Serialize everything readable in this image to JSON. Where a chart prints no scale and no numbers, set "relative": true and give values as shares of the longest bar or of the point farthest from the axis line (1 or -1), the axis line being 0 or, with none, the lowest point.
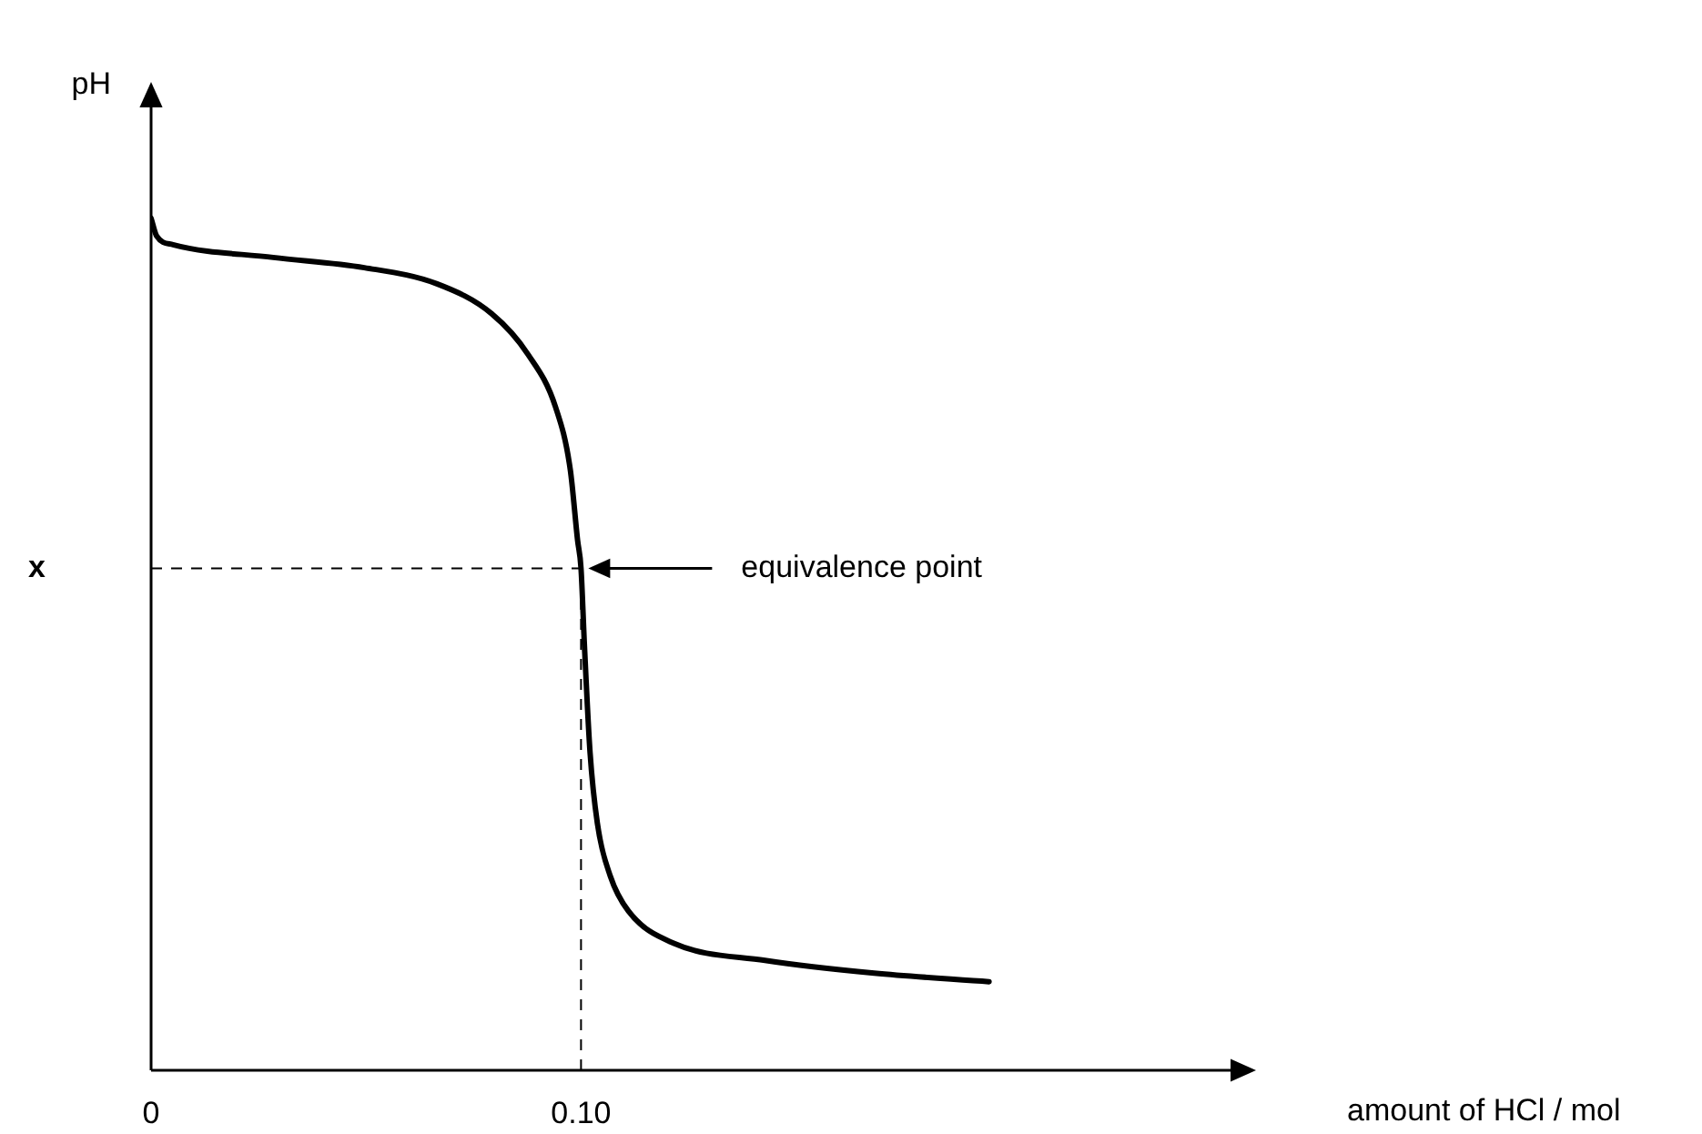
{
  "chart_data": {
    "type": "line",
    "relative": true,
    "xlabel": "amount of HCl / mol",
    "ylabel": "pH",
    "x": [
      0,
      0.0013,
      0.0051,
      0.0284,
      0.0496,
      0.0665,
      0.0792,
      0.0877,
      0.0941,
      0.0975,
      0.0992,
      0.1,
      0.1008,
      0.1021,
      0.1038,
      0.1068,
      0.111,
      0.1216,
      0.1428,
      0.1682,
      0.1949
    ],
    "series": [
      {
        "color": "#000000",
        "values": [
          1,
          0.979,
          0.969,
          0.954,
          0.942,
          0.923,
          0.888,
          0.84,
          0.778,
          0.705,
          0.622,
          0.589,
          0.498,
          0.373,
          0.29,
          0.228,
          0.187,
          0.149,
          0.129,
          0.114,
          0.104
        ]
      }
    ],
    "xlim": [
      0,
      0.257
    ],
    "xticks": [
      0,
      {
        "value": 0.1,
        "label": "0.10"
      }
    ],
    "ref_lines": [
      {
        "axis": "y",
        "value": 0.589,
        "label": "x",
        "line_style": "dashed"
      },
      {
        "axis": "x",
        "value": 0.1,
        "label": null,
        "line_style": "dashed"
      }
    ],
    "annotations": [
      "equivalence point"
    ],
    "grid": false,
    "legend": false,
    "marker": "none",
    "line_style": "solid"
  }
}
